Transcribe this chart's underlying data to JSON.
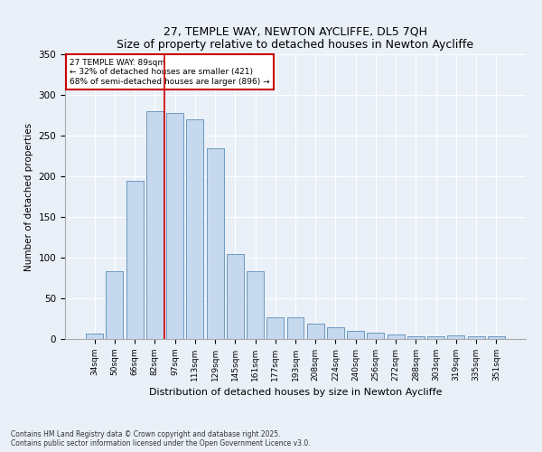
{
  "title1": "27, TEMPLE WAY, NEWTON AYCLIFFE, DL5 7QH",
  "title2": "Size of property relative to detached houses in Newton Aycliffe",
  "xlabel": "Distribution of detached houses by size in Newton Aycliffe",
  "ylabel": "Number of detached properties",
  "categories": [
    "34sqm",
    "50sqm",
    "66sqm",
    "82sqm",
    "97sqm",
    "113sqm",
    "129sqm",
    "145sqm",
    "161sqm",
    "177sqm",
    "193sqm",
    "208sqm",
    "224sqm",
    "240sqm",
    "256sqm",
    "272sqm",
    "288sqm",
    "303sqm",
    "319sqm",
    "335sqm",
    "351sqm"
  ],
  "values": [
    7,
    83,
    195,
    280,
    278,
    270,
    235,
    105,
    83,
    27,
    27,
    19,
    15,
    10,
    8,
    6,
    3,
    3,
    4,
    3,
    3
  ],
  "bar_color": "#c5d8ed",
  "bar_edge_color": "#5b8db8",
  "vline_x": 3.5,
  "vline_color": "#cc0000",
  "annotation_title": "27 TEMPLE WAY: 89sqm",
  "annotation_line1": "← 32% of detached houses are smaller (421)",
  "annotation_line2": "68% of semi-detached houses are larger (896) →",
  "annotation_box_color": "#ffffff",
  "annotation_box_edge": "#cc0000",
  "ylim": [
    0,
    350
  ],
  "yticks": [
    0,
    50,
    100,
    150,
    200,
    250,
    300,
    350
  ],
  "footer1": "Contains HM Land Registry data © Crown copyright and database right 2025.",
  "footer2": "Contains public sector information licensed under the Open Government Licence v3.0.",
  "bg_color": "#eaf0f8",
  "plot_bg_color": "#eaf0f8"
}
